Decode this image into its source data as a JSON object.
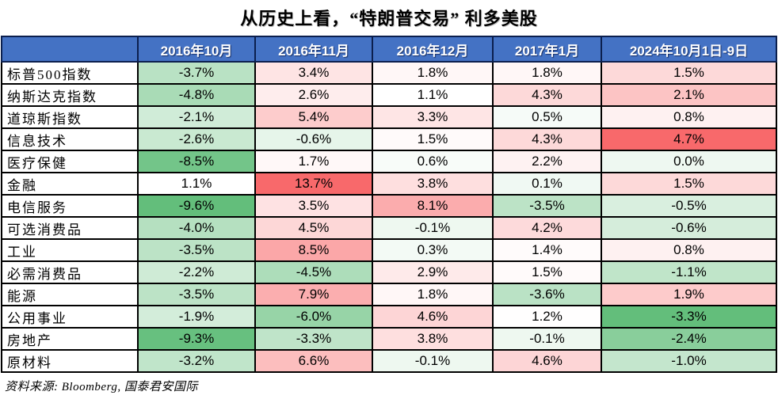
{
  "title": "从历史上看，“特朗普交易” 利多美股",
  "source": "资料来源: Bloomberg, 国泰君安国际",
  "colors": {
    "header_bg": "#4472C4",
    "header_text": "#FFFFFF",
    "grid_border": "#000000"
  },
  "chart_data": {
    "type": "heatmap",
    "title": "从历史上看，“特朗普交易” 利多美股",
    "corner_label": "",
    "columns": [
      "2016年10月",
      "2016年11月",
      "2016年12月",
      "2017年1月",
      "2024年10月1日-9日"
    ],
    "rows": [
      {
        "label": "标普500指数",
        "values": [
          -3.7,
          3.4,
          1.8,
          1.8,
          1.5
        ]
      },
      {
        "label": "纳斯达克指数",
        "values": [
          -4.8,
          2.6,
          1.1,
          4.3,
          2.1
        ]
      },
      {
        "label": "道琼斯指数",
        "values": [
          -2.1,
          5.4,
          3.3,
          0.5,
          0.8
        ]
      },
      {
        "label": "信息技术",
        "values": [
          -2.6,
          -0.6,
          1.5,
          4.3,
          4.7
        ]
      },
      {
        "label": "医疗保健",
        "values": [
          -8.5,
          1.7,
          0.6,
          2.2,
          0.0
        ]
      },
      {
        "label": "金融",
        "values": [
          1.1,
          13.7,
          3.8,
          0.1,
          1.5
        ]
      },
      {
        "label": "电信服务",
        "values": [
          -9.6,
          3.5,
          8.1,
          -3.5,
          -0.5
        ]
      },
      {
        "label": "可选消费品",
        "values": [
          -4.0,
          4.5,
          -0.1,
          4.2,
          -0.6
        ]
      },
      {
        "label": "工业",
        "values": [
          -3.5,
          8.5,
          0.3,
          1.4,
          0.8
        ]
      },
      {
        "label": "必需消费品",
        "values": [
          -2.2,
          -4.5,
          2.9,
          1.5,
          -1.1
        ]
      },
      {
        "label": "能源",
        "values": [
          -3.5,
          7.9,
          1.8,
          -3.6,
          1.9
        ]
      },
      {
        "label": "公用事业",
        "values": [
          -1.9,
          -6.0,
          4.6,
          1.2,
          -3.3
        ]
      },
      {
        "label": "房地产",
        "values": [
          -9.3,
          -3.3,
          3.8,
          -0.1,
          -2.4
        ]
      },
      {
        "label": "原材料",
        "values": [
          -3.2,
          6.6,
          -0.1,
          4.6,
          -1.0
        ]
      }
    ],
    "value_suffix": "%",
    "value_decimals": 1,
    "color_scale": {
      "min_color": "#63BE7B",
      "mid_color": "#FFFFFF",
      "max_color": "#F8696B",
      "scales": [
        {
          "columns": [
            0,
            1,
            2,
            3
          ],
          "min": -9.6,
          "mid": 1.1,
          "max": 13.7
        },
        {
          "columns": [
            4
          ],
          "min": -3.3,
          "mid": 0.4,
          "max": 4.7
        }
      ]
    },
    "legend_position": "none",
    "grid": true,
    "source": "资料来源: Bloomberg, 国泰君安国际"
  }
}
